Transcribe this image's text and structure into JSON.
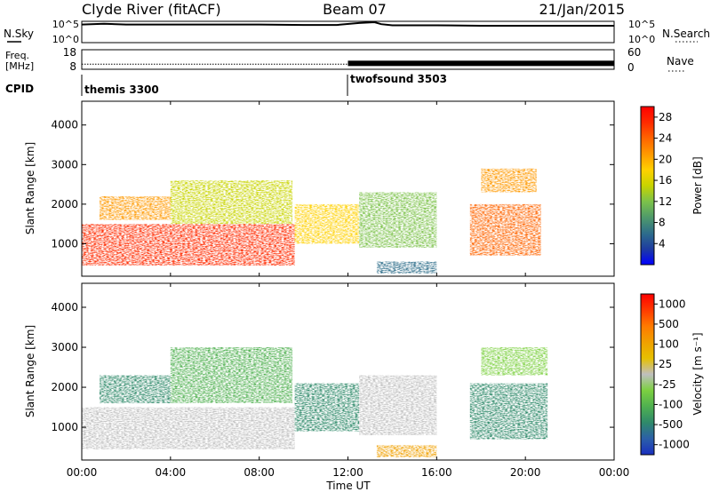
{
  "header": {
    "station": "Clyde River (fitACF)",
    "beam": "Beam 07",
    "date": "21/Jan/2015"
  },
  "panels": {
    "nsky_label": "N.Sky",
    "nsearch_label": "N.Search",
    "freq_label_1": "Freq.",
    "freq_label_2": "[MHz]",
    "nave_label": "Nave",
    "cpid_label": "CPID",
    "cpid_segments": [
      {
        "name": "themis 3300",
        "start_hour": 0
      },
      {
        "name": "twofsound 3503",
        "start_hour": 12
      }
    ]
  },
  "colors": {
    "power": [
      "#0000ff",
      "#1e3ca0",
      "#2e6e8a",
      "#4f9a6a",
      "#7cc24a",
      "#c8d400",
      "#ffd000",
      "#ff9900",
      "#ff6400",
      "#ff2a00",
      "#ff0000"
    ],
    "velocity": [
      "#1a2fbf",
      "#2c5fa8",
      "#2f8a6a",
      "#4fb050",
      "#7cd040",
      "#bfbfbf",
      "#e6c000",
      "#f0a000",
      "#ff7a00",
      "#ff3a00",
      "#ff0000"
    ]
  },
  "chart_data": [
    {
      "type": "line",
      "panel": "nsky-nsearch",
      "ylim_labels": [
        "10^0",
        "10^5"
      ],
      "right_ylim_labels": [
        "10^0",
        "10^5"
      ],
      "series": [
        {
          "name": "N.Sky",
          "x": [
            0,
            1,
            2,
            4,
            6,
            8,
            10,
            11.5,
            12.5,
            13.2,
            13.5,
            14,
            16,
            18,
            20,
            22,
            24
          ],
          "y": [
            4.4,
            4.6,
            4.4,
            4.4,
            4.4,
            4.4,
            4.3,
            4.3,
            4.8,
            5.0,
            4.5,
            4.2,
            4.2,
            4.1,
            4.1,
            4.1,
            4.1
          ]
        }
      ]
    },
    {
      "type": "line",
      "panel": "freq-nave",
      "yticks_left": [
        8,
        18
      ],
      "yticks_right": [
        0,
        60
      ],
      "series": [
        {
          "name": "Freq.",
          "x": [
            0,
            12,
            24
          ],
          "y": [
            10.4,
            10.4,
            10.4
          ]
        },
        {
          "name": "Nave",
          "x": [
            12,
            24
          ],
          "y": [
            17,
            17
          ]
        }
      ]
    },
    {
      "type": "heatmap",
      "panel": "power",
      "ylabel": "Slant Range [km]",
      "yticks": [
        1000,
        2000,
        3000,
        4000
      ],
      "ylim": [
        180,
        4600
      ],
      "colorbar_label": "Power [dB]",
      "colorbar_ticks": [
        4,
        8,
        12,
        16,
        20,
        24,
        28
      ],
      "colorbar_range": [
        0,
        30
      ],
      "regions": [
        {
          "t0": 0,
          "t1": 9.6,
          "r0": 450,
          "r1": 1500,
          "value": 28
        },
        {
          "t0": 0.8,
          "t1": 4.5,
          "r0": 1600,
          "r1": 2200,
          "value": 20
        },
        {
          "t0": 4,
          "t1": 9.5,
          "r0": 1500,
          "r1": 2600,
          "value": 14
        },
        {
          "t0": 9.6,
          "t1": 12.5,
          "r0": 1000,
          "r1": 2000,
          "value": 18
        },
        {
          "t0": 12.5,
          "t1": 16,
          "r0": 900,
          "r1": 2300,
          "value": 12
        },
        {
          "t0": 13.3,
          "t1": 16,
          "r0": 250,
          "r1": 550,
          "value": 6
        },
        {
          "t0": 17.5,
          "t1": 20.7,
          "r0": 700,
          "r1": 2000,
          "value": 24
        },
        {
          "t0": 18,
          "t1": 20.5,
          "r0": 2300,
          "r1": 2900,
          "value": 20
        }
      ]
    },
    {
      "type": "heatmap",
      "panel": "velocity",
      "ylabel": "Slant Range [km]",
      "yticks": [
        1000,
        2000,
        3000,
        4000
      ],
      "ylim": [
        180,
        4600
      ],
      "xlabel": "Time UT",
      "xticks": [
        "00:00",
        "04:00",
        "08:00",
        "12:00",
        "16:00",
        "20:00",
        "00:00"
      ],
      "xlim_hours": [
        0,
        24
      ],
      "colorbar_label": "Velocity [m s⁻¹]",
      "colorbar_ticks": [
        "1000",
        "500",
        "100",
        "25",
        "-25",
        "-100",
        "-500",
        "-1000"
      ],
      "regions": [
        {
          "t0": 0,
          "t1": 9.6,
          "r0": 450,
          "r1": 1500,
          "value": 0.45
        },
        {
          "t0": 0.8,
          "t1": 5,
          "r0": 1600,
          "r1": 2300,
          "value": 0.2
        },
        {
          "t0": 4,
          "t1": 9.5,
          "r0": 1600,
          "r1": 3000,
          "value": 0.25
        },
        {
          "t0": 9.6,
          "t1": 12.5,
          "r0": 900,
          "r1": 2100,
          "value": 0.15
        },
        {
          "t0": 12.5,
          "t1": 16,
          "r0": 800,
          "r1": 2300,
          "value": 0.5
        },
        {
          "t0": 13.3,
          "t1": 16,
          "r0": 250,
          "r1": 550,
          "value": 0.65
        },
        {
          "t0": 17.5,
          "t1": 21,
          "r0": 700,
          "r1": 2100,
          "value": 0.2
        },
        {
          "t0": 18,
          "t1": 21,
          "r0": 2300,
          "r1": 3000,
          "value": 0.4
        }
      ]
    }
  ]
}
